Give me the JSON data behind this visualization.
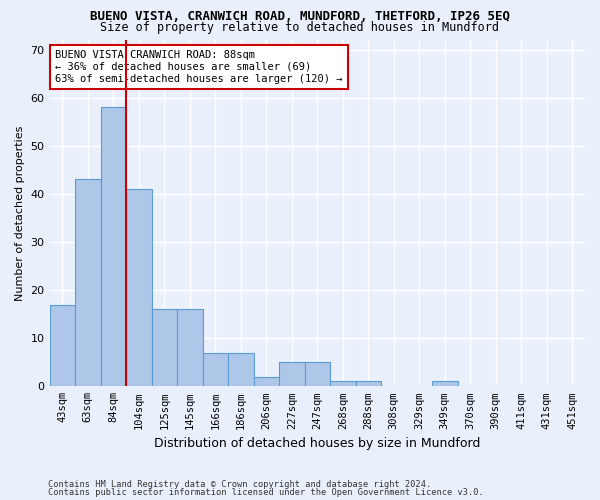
{
  "title": "BUENO VISTA, CRANWICH ROAD, MUNDFORD, THETFORD, IP26 5EQ",
  "subtitle": "Size of property relative to detached houses in Mundford",
  "xlabel": "Distribution of detached houses by size in Mundford",
  "ylabel": "Number of detached properties",
  "footer1": "Contains HM Land Registry data © Crown copyright and database right 2024.",
  "footer2": "Contains public sector information licensed under the Open Government Licence v3.0.",
  "categories": [
    "43sqm",
    "63sqm",
    "84sqm",
    "104sqm",
    "125sqm",
    "145sqm",
    "166sqm",
    "186sqm",
    "206sqm",
    "227sqm",
    "247sqm",
    "268sqm",
    "288sqm",
    "308sqm",
    "329sqm",
    "349sqm",
    "370sqm",
    "390sqm",
    "411sqm",
    "431sqm",
    "451sqm"
  ],
  "values": [
    17,
    43,
    58,
    41,
    16,
    16,
    7,
    7,
    2,
    5,
    5,
    1,
    1,
    0,
    0,
    1,
    0,
    0,
    0,
    0,
    0
  ],
  "bar_color": "#aec6e8",
  "bar_edge_color": "#5b9bd5",
  "highlight_bin_index": 2,
  "annotation_title": "BUENO VISTA CRANWICH ROAD: 88sqm",
  "annotation_line1": "← 36% of detached houses are smaller (69)",
  "annotation_line2": "63% of semi-detached houses are larger (120) →",
  "ylim": [
    0,
    72
  ],
  "yticks": [
    0,
    10,
    20,
    30,
    40,
    50,
    60,
    70
  ],
  "bg_color": "#eaf0fb",
  "grid_color": "#ffffff",
  "annotation_box_color": "#ffffff",
  "annotation_box_edge": "#cc0000",
  "vline_color": "#cc0000"
}
